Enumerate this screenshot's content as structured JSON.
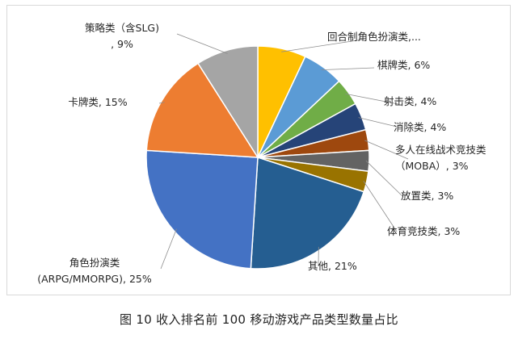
{
  "chart_data": {
    "type": "pie",
    "title": "",
    "start_category": "回合制角色扮演类",
    "direction": "clockwise",
    "slices": [
      {
        "category": "回合制角色扮演类",
        "value": 7,
        "label_lines": [
          "回合制角色扮演类,..."
        ],
        "color": "#FFC000"
      },
      {
        "category": "棋牌类",
        "value": 6,
        "label_lines": [
          "棋牌类, 6%"
        ],
        "color": "#5B9BD5"
      },
      {
        "category": "射击类",
        "value": 4,
        "label_lines": [
          "射击类, 4%"
        ],
        "color": "#70AD47"
      },
      {
        "category": "消除类",
        "value": 4,
        "label_lines": [
          "消除类, 4%"
        ],
        "color": "#264478"
      },
      {
        "category": "多人在线战术竞技类（MOBA）",
        "value": 3,
        "label_lines": [
          "多人在线战术竞技类",
          "（MOBA）, 3%"
        ],
        "color": "#9E480E"
      },
      {
        "category": "放置类",
        "value": 3,
        "label_lines": [
          "放置类, 3%"
        ],
        "color": "#636363"
      },
      {
        "category": "体育竞技类",
        "value": 3,
        "label_lines": [
          "体育竞技类, 3%"
        ],
        "color": "#997300"
      },
      {
        "category": "其他",
        "value": 21,
        "label_lines": [
          "其他, 21%"
        ],
        "color": "#255E91"
      },
      {
        "category": "角色扮演类（ARPG/MMORPG）",
        "value": 25,
        "label_lines": [
          "角色扮演类",
          "(ARPG/MMORPG), 25%"
        ],
        "color": "#4472C4"
      },
      {
        "category": "卡牌类",
        "value": 15,
        "label_lines": [
          "卡牌类, 15%"
        ],
        "color": "#ED7D31"
      },
      {
        "category": "策略类（含SLG）",
        "value": 9,
        "label_lines": [
          "策略类（含SLG)",
          ", 9%"
        ],
        "color": "#A5A5A5"
      }
    ]
  },
  "caption": "图 10 收入排名前 100 移动游戏产品类型数量占比"
}
